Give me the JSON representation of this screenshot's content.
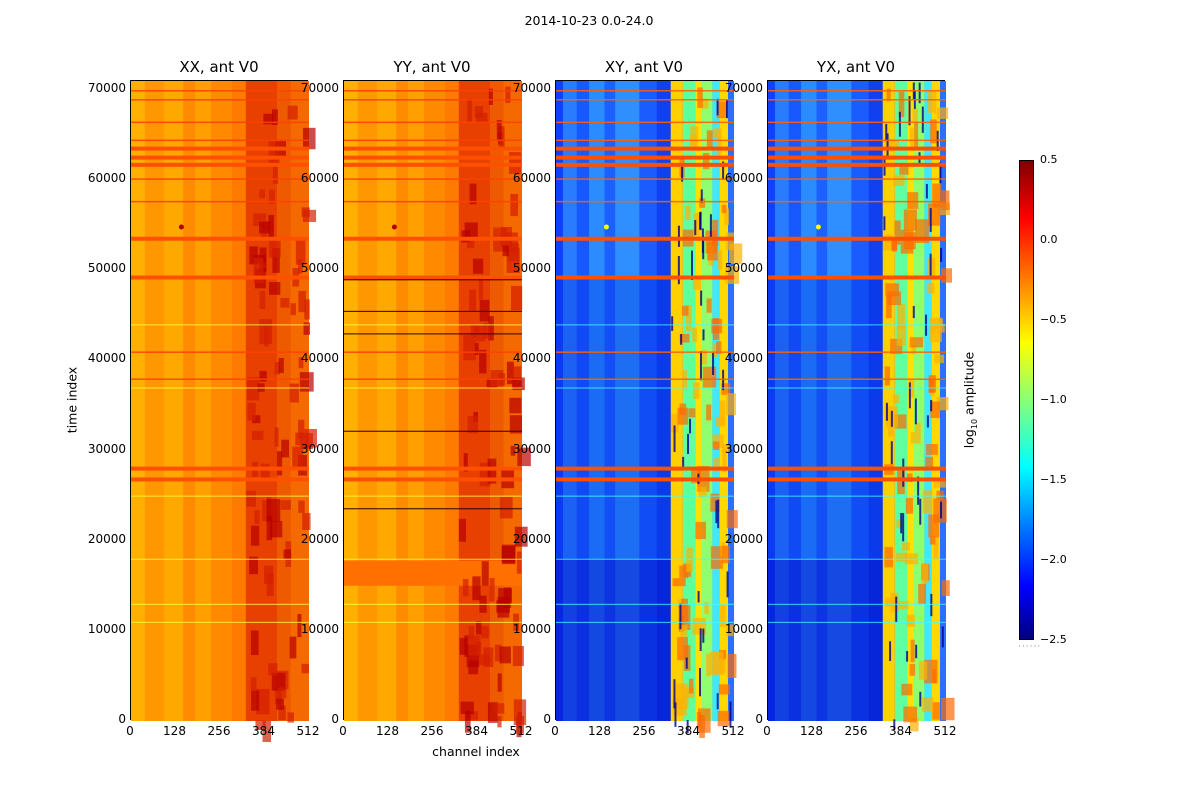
{
  "suptitle": "2014-10-23 0.0-24.0",
  "chart_data": {
    "type": "heatmap",
    "title": "2014-10-23 0.0-24.0",
    "xlabel": "channel index",
    "ylabel": "time index",
    "xlim": [
      0,
      512
    ],
    "ylim": [
      0,
      71000
    ],
    "xticks": [
      "0",
      "128",
      "256",
      "384",
      "512"
    ],
    "yticks": [
      "0",
      "10000",
      "20000",
      "30000",
      "40000",
      "50000",
      "60000",
      "70000"
    ],
    "panels": [
      {
        "title": "XX, ant V0",
        "polarization": "XX",
        "style": "hot"
      },
      {
        "title": "YY, ant V0",
        "polarization": "YY",
        "style": "hot"
      },
      {
        "title": "XY, ant V0",
        "polarization": "XY",
        "style": "cold"
      },
      {
        "title": "YX, ant V0",
        "polarization": "YX",
        "style": "cold"
      }
    ],
    "colorbar": {
      "label": "log10 amplitude",
      "label_base": "log",
      "label_sub": "10",
      "label_rest": " amplitude",
      "colormap": "jet",
      "range": [
        -2.5,
        0.5
      ],
      "ticks": [
        "0.5",
        "0.0",
        "−0.5",
        "−1.0",
        "−1.5",
        "−2.0",
        "−2.5"
      ],
      "tick_values": [
        0.5,
        0.0,
        -0.5,
        -1.0,
        -1.5,
        -2.0,
        -2.5
      ]
    },
    "flagged_time_bands": [
      53500,
      49200,
      61700,
      62500,
      63500,
      28000,
      26800
    ]
  }
}
